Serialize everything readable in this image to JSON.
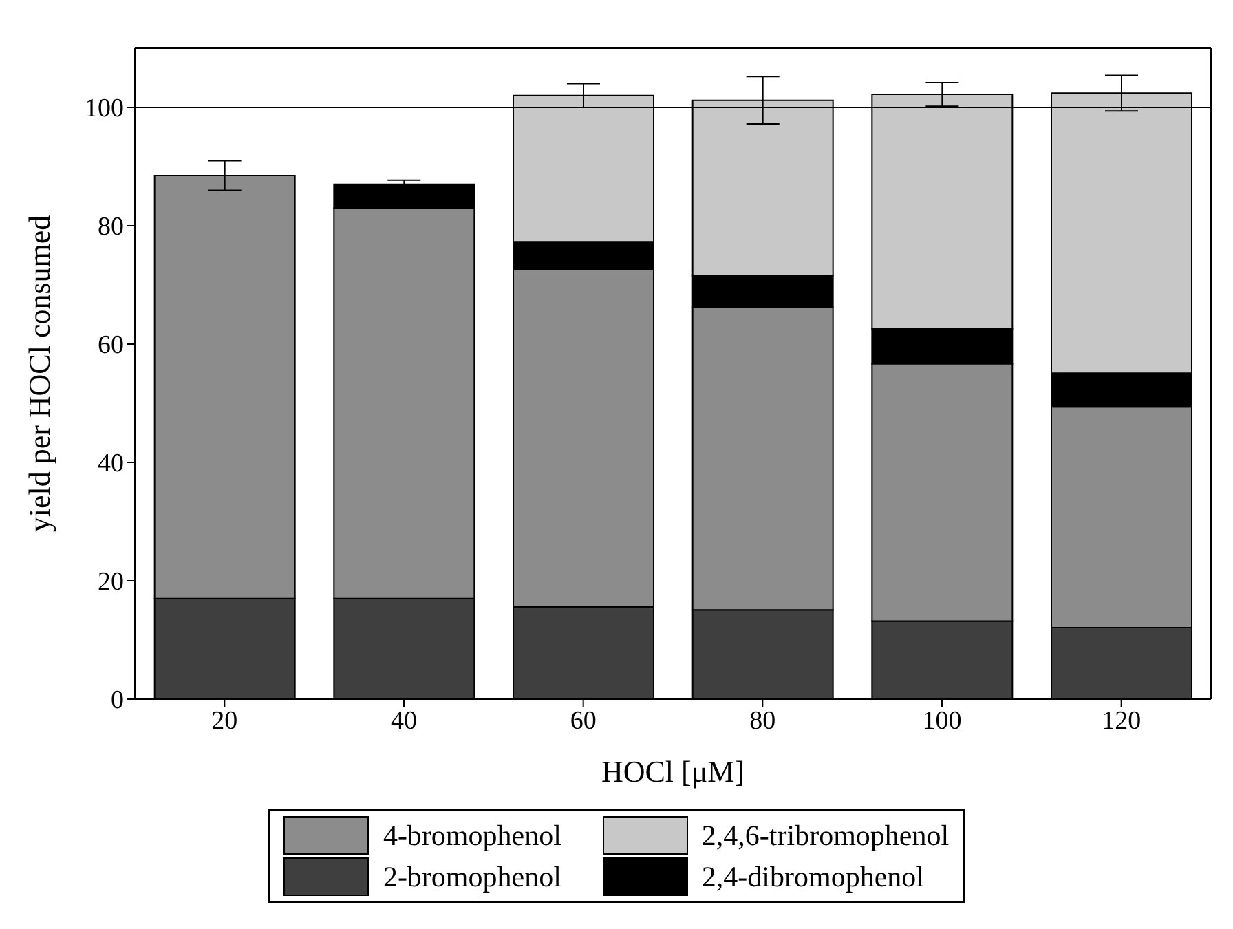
{
  "chart_data": {
    "type": "bar",
    "stacked": true,
    "xlabel": "HOCl [μM]",
    "ylabel": "yield per HOCl consumed",
    "categories": [
      "20",
      "40",
      "60",
      "80",
      "100",
      "120"
    ],
    "series": [
      {
        "name": "2-bromophenol",
        "color": "#3f3f3f",
        "values": [
          17.0,
          17.0,
          15.6,
          15.1,
          13.2,
          12.1
        ]
      },
      {
        "name": "4-bromophenol",
        "color": "#8c8c8c",
        "values": [
          71.5,
          66.0,
          57.0,
          51.1,
          43.5,
          37.3
        ],
        "errors": [
          2.5,
          null,
          null,
          null,
          null,
          null
        ]
      },
      {
        "name": "2,4-dibromophenol",
        "color": "#000000",
        "values": [
          null,
          4.0,
          4.7,
          5.4,
          5.9,
          5.7
        ],
        "errors": [
          null,
          0.7,
          null,
          null,
          null,
          null
        ]
      },
      {
        "name": "2,4,6-tribromophenol",
        "color": "#c8c8c8",
        "values": [
          null,
          null,
          24.7,
          29.6,
          39.6,
          47.3
        ],
        "errors": [
          null,
          null,
          2,
          4,
          2,
          3
        ]
      }
    ],
    "ylim": [
      0,
      110
    ],
    "yticks": [
      0,
      20,
      40,
      60,
      80,
      100
    ],
    "ref_lines": [
      {
        "axis": "y",
        "value": 100,
        "color": "#000000"
      }
    ],
    "legend": "bottom"
  }
}
